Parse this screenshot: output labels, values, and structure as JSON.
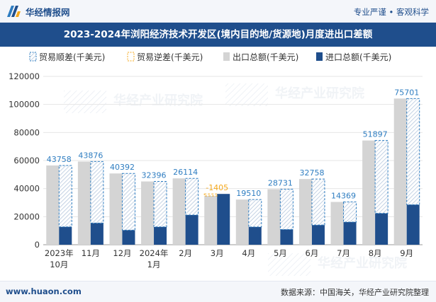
{
  "header": {
    "brand": "华经情报网",
    "slogan": "专业严谨 • 客观科学"
  },
  "title": "2023-2024年浏阳经济技术开发区(境内目的地/货源地)月度进出口差额",
  "footer": {
    "url": "www.huaon.com",
    "source": "数据来源：中国海关，华经产业研究院整理"
  },
  "watermark": "华经产业研究院",
  "colors": {
    "brand": "#1f4e8c",
    "surplus": "#2e7dc1",
    "deficit": "#f4a81d",
    "export": "#d4d4d4",
    "import": "#1f4e8c"
  },
  "chart_data": {
    "type": "bar",
    "categories": [
      "2023年\n10月",
      "11月",
      "12月",
      "2024年\n1月",
      "2月",
      "3月",
      "4月",
      "5月",
      "6月",
      "7月",
      "8月",
      "9月"
    ],
    "series": [
      {
        "name": "贸易顺差(千美元)",
        "values": [
          43758,
          43876,
          40392,
          32396,
          26114,
          null,
          19510,
          28731,
          32758,
          14369,
          51897,
          75701
        ]
      },
      {
        "name": "贸易逆差(千美元)",
        "values": [
          null,
          null,
          null,
          null,
          null,
          -1405,
          null,
          null,
          null,
          null,
          null,
          null
        ]
      },
      {
        "name": "出口总额(千美元)",
        "values": [
          56500,
          59300,
          50800,
          45100,
          47300,
          34800,
          32200,
          39600,
          46800,
          30500,
          74300,
          104200
        ]
      },
      {
        "name": "进口总额(千美元)",
        "values": [
          12742,
          15424,
          10408,
          12704,
          21186,
          36205,
          12690,
          10869,
          14042,
          16131,
          22403,
          28499
        ]
      }
    ],
    "data_labels": [
      "43758",
      "43876",
      "40392",
      "32396",
      "26114",
      "-1405",
      "19510",
      "28731",
      "32758",
      "14369",
      "51897",
      "75701"
    ],
    "yticks": [
      "0",
      "20000",
      "40000",
      "60000",
      "80000",
      "100000",
      "120000"
    ],
    "ylim": [
      0,
      120000
    ],
    "legend_position": "top-left",
    "grid": true
  }
}
